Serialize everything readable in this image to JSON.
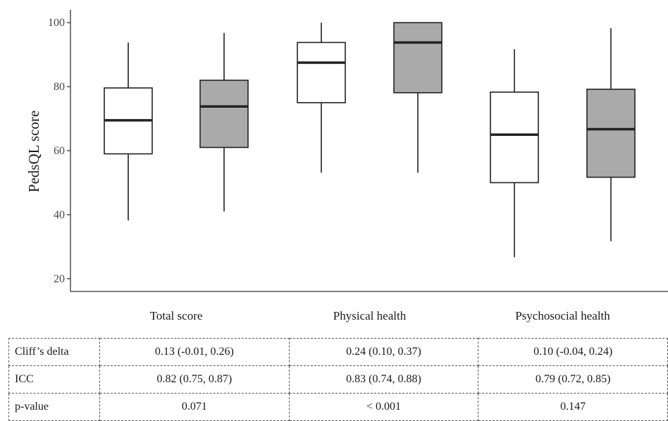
{
  "chart_data": {
    "type": "box",
    "ylabel": "PedsQL score",
    "ylim": [
      16,
      104
    ],
    "yticks": [
      20,
      40,
      60,
      80,
      100
    ],
    "grid": false,
    "categories": [
      "Total score",
      "Physical health",
      "Psychosocial health"
    ],
    "colors": {
      "group1": "#ffffff",
      "group2": "#aaaaaa"
    },
    "boxes": [
      {
        "category": "Total score",
        "group": 1,
        "min": 38.2,
        "q1": 59,
        "median": 69.5,
        "q3": 79.6,
        "max": 93.8
      },
      {
        "category": "Total score",
        "group": 2,
        "min": 41,
        "q1": 61,
        "median": 73.8,
        "q3": 82,
        "max": 96.8
      },
      {
        "category": "Physical health",
        "group": 1,
        "min": 53.1,
        "q1": 75,
        "median": 87.5,
        "q3": 93.8,
        "max": 100
      },
      {
        "category": "Physical health",
        "group": 2,
        "min": 53.1,
        "q1": 78.1,
        "median": 93.8,
        "q3": 100,
        "max": 100
      },
      {
        "category": "Psychosocial health",
        "group": 1,
        "min": 26.7,
        "q1": 50,
        "median": 65,
        "q3": 78.3,
        "max": 91.7
      },
      {
        "category": "Psychosocial health",
        "group": 2,
        "min": 31.7,
        "q1": 51.7,
        "median": 66.7,
        "q3": 79.2,
        "max": 98.3
      }
    ]
  },
  "table": {
    "rows": [
      {
        "label": "Cliff’s delta",
        "values": [
          "0.13 (-0.01, 0.26)",
          "0.24 (0.10, 0.37)",
          "0.10 (-0.04, 0.24)"
        ]
      },
      {
        "label": "ICC",
        "values": [
          "0.82 (0.75, 0.87)",
          "0.83 (0.74, 0.88)",
          "0.79 (0.72, 0.85)"
        ]
      },
      {
        "label": "p-value",
        "values": [
          "0.071",
          "< 0.001",
          "0.147"
        ]
      }
    ]
  }
}
